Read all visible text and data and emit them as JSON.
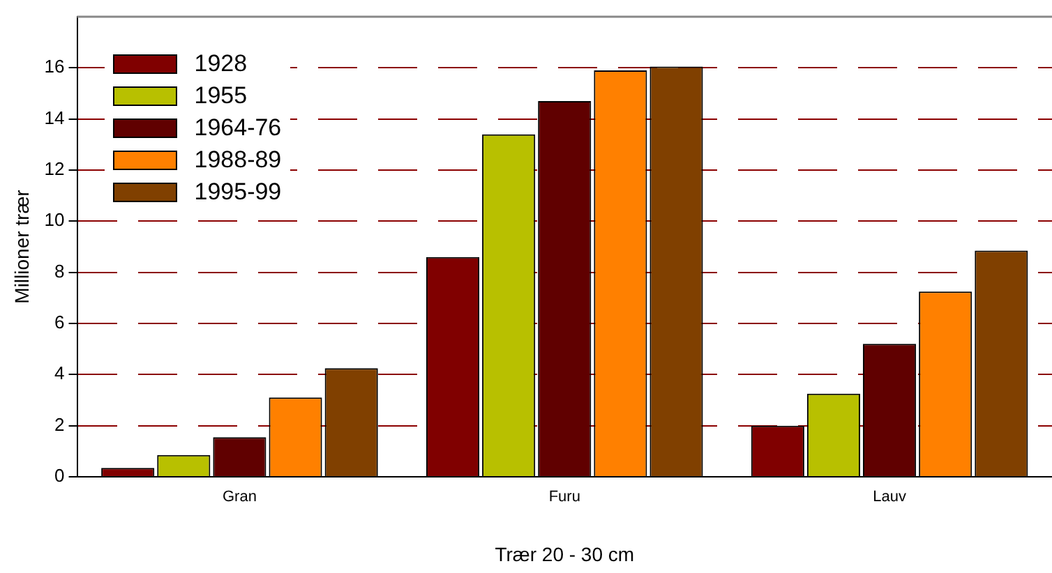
{
  "chart_data": {
    "type": "bar",
    "xlabel": "Trær 20 - 30 cm",
    "ylabel": "Millioner trær",
    "categories": [
      "Gran",
      "Furu",
      "Lauv"
    ],
    "series": [
      {
        "name": "1928",
        "color": "#800000",
        "values": [
          0.35,
          8.6,
          2.0
        ]
      },
      {
        "name": "1955",
        "color": "#b8c000",
        "values": [
          0.85,
          13.4,
          3.25
        ]
      },
      {
        "name": "1964-76",
        "color": "#600000",
        "values": [
          1.55,
          14.7,
          5.2
        ]
      },
      {
        "name": "1988-89",
        "color": "#ff8000",
        "values": [
          3.1,
          15.9,
          7.25
        ]
      },
      {
        "name": "1995-99",
        "color": "#804000",
        "values": [
          4.25,
          16.05,
          8.85
        ]
      }
    ],
    "ylim": [
      0,
      18
    ],
    "yticks": [
      0,
      2,
      4,
      6,
      8,
      10,
      12,
      14,
      16
    ],
    "grid": "y",
    "legend": "top left"
  }
}
